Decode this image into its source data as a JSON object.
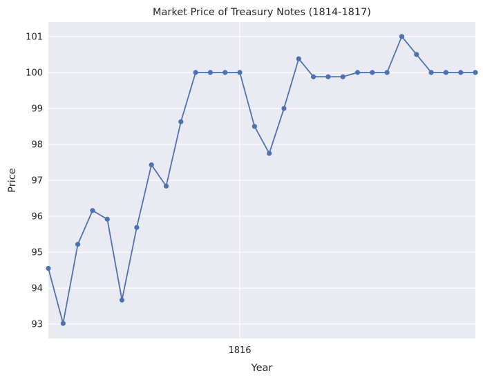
{
  "chart_data": {
    "type": "line",
    "title": "Market Price of Treasury Notes (1814-1817)",
    "xlabel": "Year",
    "ylabel": "Price",
    "x_tick_labels": [
      "1816"
    ],
    "y_ticks": [
      93,
      94,
      95,
      96,
      97,
      98,
      99,
      100,
      101
    ],
    "ylim": [
      92.6,
      101.4
    ],
    "grid": true,
    "series": [
      {
        "values": [
          94.55,
          93.02,
          95.22,
          96.16,
          95.92,
          93.67,
          95.69,
          97.43,
          96.84,
          98.63,
          100.0,
          100.0,
          100.0,
          100.0,
          98.5,
          97.75,
          99.0,
          100.38,
          99.88,
          99.88,
          99.88,
          100.0,
          100.0,
          100.0,
          101.0,
          100.5,
          100.0,
          100.0,
          100.0,
          100.0
        ],
        "color": "#4c72b0"
      }
    ]
  }
}
